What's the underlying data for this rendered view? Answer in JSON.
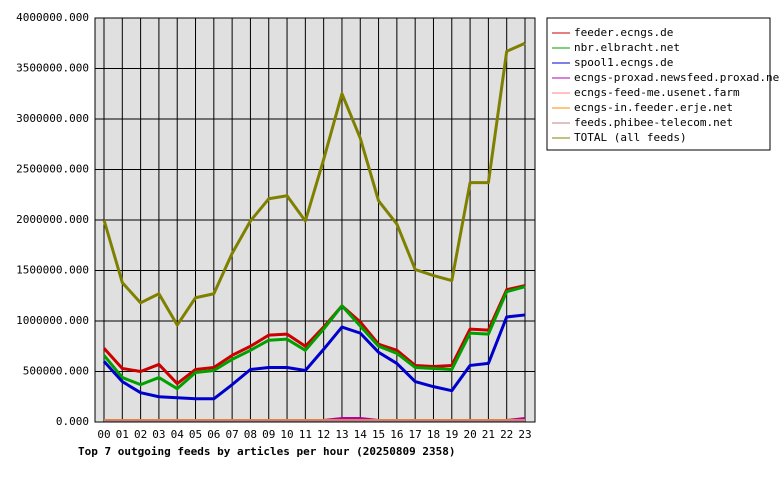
{
  "chart_data": {
    "type": "line",
    "title": "Top 7 outgoing feeds by articles per hour (20250809 2358)",
    "categories": [
      "00",
      "01",
      "02",
      "03",
      "04",
      "05",
      "06",
      "07",
      "08",
      "09",
      "10",
      "11",
      "12",
      "13",
      "14",
      "15",
      "16",
      "17",
      "18",
      "19",
      "20",
      "21",
      "22",
      "23"
    ],
    "series": [
      {
        "name": "feeder.ecngs.de",
        "color": "#cc0000",
        "values": [
          730000,
          530000,
          500000,
          570000,
          380000,
          520000,
          540000,
          660000,
          750000,
          860000,
          870000,
          750000,
          940000,
          1150000,
          990000,
          770000,
          710000,
          560000,
          550000,
          560000,
          920000,
          910000,
          1310000,
          1350000
        ]
      },
      {
        "name": "nbr.elbracht.net",
        "color": "#00a000",
        "values": [
          660000,
          440000,
          370000,
          440000,
          330000,
          490000,
          510000,
          620000,
          710000,
          810000,
          820000,
          710000,
          920000,
          1150000,
          950000,
          750000,
          680000,
          540000,
          530000,
          520000,
          880000,
          870000,
          1290000,
          1340000
        ]
      },
      {
        "name": "spool1.ecngs.de",
        "color": "#0000cc",
        "values": [
          600000,
          400000,
          290000,
          250000,
          240000,
          230000,
          230000,
          370000,
          520000,
          540000,
          540000,
          510000,
          720000,
          940000,
          880000,
          690000,
          580000,
          400000,
          350000,
          310000,
          560000,
          580000,
          1040000,
          1060000
        ]
      },
      {
        "name": "ecngs-proxad.newsfeed.proxad.net",
        "color": "#b000b0",
        "values": [
          20000,
          20000,
          20000,
          20000,
          20000,
          20000,
          20000,
          20000,
          20000,
          20000,
          20000,
          20000,
          20000,
          40000,
          40000,
          20000,
          20000,
          20000,
          20000,
          20000,
          20000,
          20000,
          20000,
          40000
        ]
      },
      {
        "name": "ecngs-feed-me.usenet.farm",
        "color": "#ff8080",
        "values": [
          20000,
          20000,
          20000,
          20000,
          20000,
          20000,
          20000,
          20000,
          20000,
          20000,
          20000,
          20000,
          20000,
          20000,
          20000,
          20000,
          20000,
          20000,
          20000,
          20000,
          20000,
          20000,
          20000,
          20000
        ]
      },
      {
        "name": "ecngs-in.feeder.erje.net",
        "color": "#ff8800",
        "values": [
          20000,
          20000,
          20000,
          20000,
          20000,
          20000,
          20000,
          20000,
          20000,
          20000,
          20000,
          20000,
          20000,
          20000,
          20000,
          20000,
          20000,
          20000,
          20000,
          20000,
          20000,
          20000,
          20000,
          20000
        ]
      },
      {
        "name": "feeds.phibee-telecom.net",
        "color": "#c08080",
        "values": [
          15000,
          15000,
          15000,
          15000,
          15000,
          15000,
          15000,
          15000,
          15000,
          15000,
          15000,
          15000,
          15000,
          15000,
          15000,
          15000,
          15000,
          15000,
          15000,
          15000,
          15000,
          15000,
          15000,
          15000
        ]
      },
      {
        "name": "TOTAL (all feeds)",
        "color": "#808000",
        "values": [
          2000000,
          1380000,
          1180000,
          1270000,
          960000,
          1230000,
          1270000,
          1670000,
          1990000,
          2210000,
          2240000,
          1990000,
          2600000,
          3250000,
          2810000,
          2190000,
          1960000,
          1510000,
          1450000,
          1400000,
          2370000,
          2370000,
          3670000,
          3750000
        ]
      }
    ],
    "ylim": [
      0,
      4000000
    ],
    "yticks": [
      {
        "value": 0,
        "label": "0.000"
      },
      {
        "value": 500000,
        "label": "500000.000"
      },
      {
        "value": 1000000,
        "label": "1000000.000"
      },
      {
        "value": 1500000,
        "label": "1500000.000"
      },
      {
        "value": 2000000,
        "label": "2000000.000"
      },
      {
        "value": 2500000,
        "label": "2500000.000"
      },
      {
        "value": 3000000,
        "label": "3000000.000"
      },
      {
        "value": 3500000,
        "label": "3500000.000"
      },
      {
        "value": 4000000,
        "label": "4000000.000"
      }
    ],
    "grid": true
  }
}
